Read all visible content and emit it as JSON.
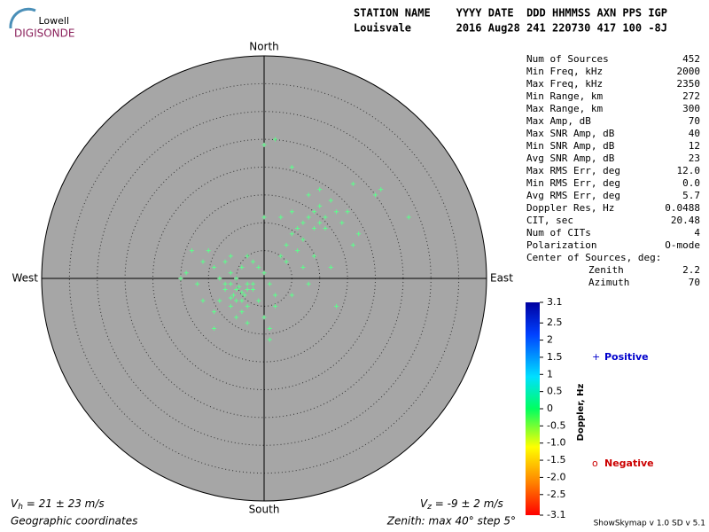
{
  "logo": {
    "top": "Lowell",
    "bottom": "DIGISONDE"
  },
  "header": {
    "line1": "STATION NAME    YYYY DATE  DDD HHMMSS AXN PPS IGP",
    "line2": "Louisvale       2016 Aug28 241 220730 417 100 -8J"
  },
  "stats": [
    [
      "Num of Sources",
      "452"
    ],
    [
      "Min Freq, kHz",
      "2000"
    ],
    [
      "Max Freq, kHz",
      "2350"
    ],
    [
      "Min Range, km",
      "272"
    ],
    [
      "Max Range, km",
      "300"
    ],
    [
      "Max Amp, dB",
      "70"
    ],
    [
      "Max SNR Amp, dB",
      "40"
    ],
    [
      "Min SNR Amp, dB",
      "12"
    ],
    [
      "Avg SNR Amp, dB",
      "23"
    ],
    [
      "Max RMS Err, deg",
      "12.0"
    ],
    [
      "Min RMS Err, deg",
      "0.0"
    ],
    [
      "Avg RMS Err, deg",
      "5.7"
    ],
    [
      "Doppler Res, Hz",
      "0.0488"
    ],
    [
      "CIT, sec",
      "20.48"
    ],
    [
      "Num of CITs",
      "4"
    ],
    [
      "Polarization",
      "O-mode"
    ]
  ],
  "center": {
    "title": "Center of Sources, deg:",
    "rows": [
      [
        "Zenith",
        "2.2"
      ],
      [
        "Azimuth",
        "70"
      ]
    ]
  },
  "colorbar": {
    "label": "Doppler, Hz",
    "lim": [
      -3.1,
      3.1
    ],
    "ticks": [
      3.1,
      2.5,
      2,
      1.5,
      1,
      0.5,
      0,
      -0.5,
      {
        "value": -1,
        "label": "-1.0"
      },
      -1.5,
      {
        "value": -2,
        "label": "-2.0"
      },
      -2.5,
      -3.1
    ]
  },
  "legend": {
    "positive": {
      "symbol": "+",
      "label": "Positive",
      "color": "#0000cc"
    },
    "negative": {
      "symbol": "o",
      "label": "Negative",
      "color": "#cc0000"
    }
  },
  "footer": {
    "vh": {
      "symbol": "V",
      "subscript": "h",
      "text": " = 21 ± 23 m/s"
    },
    "vz": {
      "symbol": "V",
      "subscript": "z",
      "text": " = -9 ± 2 m/s"
    },
    "coords": "Geographic coordinates",
    "zenith": "Zenith: max 40°  step 5°",
    "version": "ShowSkymap v 1.0  SD v 5.1"
  },
  "chart_data": {
    "type": "scatter",
    "directions": {
      "north": "North",
      "south": "South",
      "east": "East",
      "west": "West"
    },
    "rlim": [
      0,
      40
    ],
    "ring_step": 5,
    "color": "#5cff8c",
    "x": [
      -5,
      -6,
      -4,
      -5.5,
      -3,
      -7,
      -4.5,
      -6,
      -3.5,
      -8,
      -2,
      -5,
      -9,
      -11,
      -10,
      -7,
      -6,
      -4,
      -3,
      -2,
      -1,
      0,
      1,
      2,
      -1,
      -3,
      -6,
      -8,
      -9,
      -5,
      -3,
      0,
      2,
      -12,
      -14,
      -13,
      -11,
      -4,
      1,
      -3,
      -7,
      -2,
      -6,
      -5,
      -4,
      3,
      4,
      5,
      6,
      7,
      8,
      9,
      10,
      11,
      12,
      9,
      7,
      10,
      11,
      13,
      14,
      15,
      8,
      10,
      5,
      6,
      4,
      16,
      17,
      20,
      21,
      26,
      16,
      5,
      2,
      0,
      3,
      9,
      12,
      8,
      13,
      1,
      -9,
      -15,
      5,
      7,
      0
    ],
    "y": [
      -2,
      -1,
      -2.5,
      -3,
      -1,
      -2,
      -1.5,
      -3.5,
      -3,
      0,
      -2,
      0,
      2,
      3,
      5,
      3,
      4,
      2,
      4,
      3,
      2,
      1,
      -1,
      -3,
      -4,
      -5,
      -5,
      -4,
      -6,
      -7,
      -8,
      -7,
      -5,
      -1,
      1,
      5,
      -4,
      -6,
      -11,
      -2,
      -1,
      -1,
      1,
      -4,
      -4,
      4,
      6,
      8,
      9,
      10,
      11,
      12,
      13,
      11,
      14,
      9,
      7,
      10,
      9,
      12,
      10,
      12,
      15,
      16,
      12,
      5,
      3,
      6,
      8,
      15,
      16,
      11,
      17,
      20,
      25,
      24,
      11,
      4,
      2,
      -1,
      -5,
      -9,
      -9,
      0,
      -3,
      2,
      11
    ]
  }
}
